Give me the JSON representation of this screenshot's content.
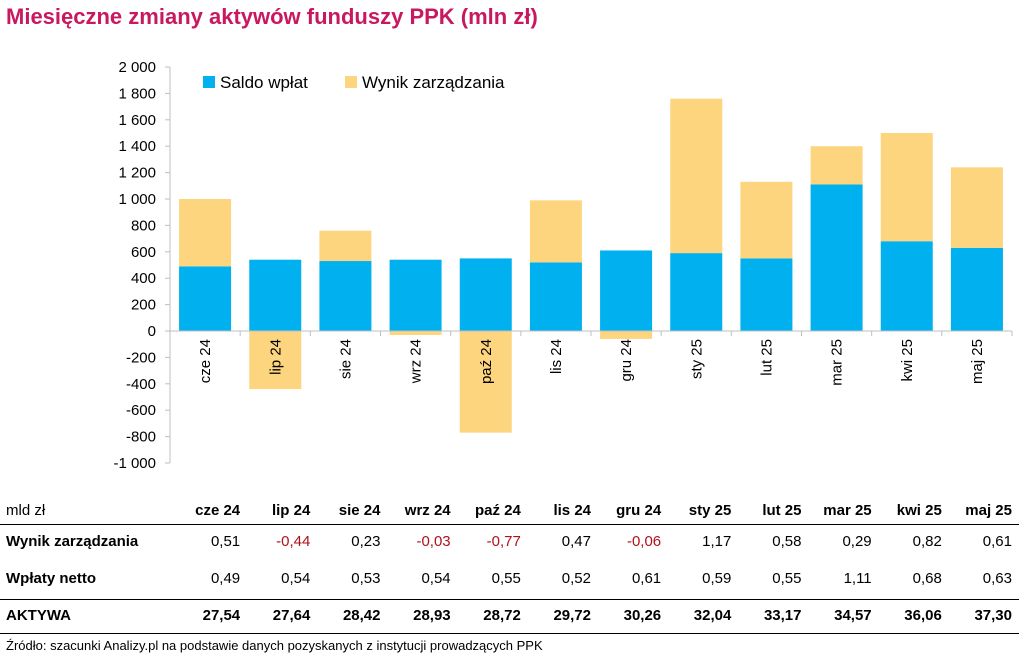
{
  "title": "Miesięczne zmiany aktywów funduszy PPK (mln zł)",
  "colors": {
    "saldo": "#00b0ef",
    "wynik": "#fdd57e",
    "title": "#c8185f",
    "negative": "#b0101a"
  },
  "chart_data": {
    "type": "bar",
    "stacked": true,
    "categories": [
      "cze 24",
      "lip 24",
      "sie 24",
      "wrz 24",
      "paź 24",
      "lis 24",
      "gru 24",
      "sty 25",
      "lut 25",
      "mar 25",
      "kwi 25",
      "maj 25"
    ],
    "series": [
      {
        "name": "Saldo wpłat",
        "values": [
          490,
          540,
          530,
          540,
          550,
          520,
          610,
          590,
          550,
          1110,
          680,
          630
        ]
      },
      {
        "name": "Wynik zarządzania",
        "values": [
          510,
          -440,
          230,
          -30,
          -770,
          470,
          -60,
          1170,
          580,
          290,
          820,
          610
        ]
      }
    ],
    "ylim": [
      -1000,
      2000
    ],
    "yticks": [
      "2 000",
      "1 800",
      "1 600",
      "1 400",
      "1 200",
      "1 000",
      "800",
      "600",
      "400",
      "200",
      "0",
      "-200",
      "-400",
      "-600",
      "-800",
      "-1 000"
    ],
    "legend_position": "top-left",
    "grid": false
  },
  "table": {
    "unit_label": "mld zł",
    "columns": [
      "cze 24",
      "lip 24",
      "sie 24",
      "wrz 24",
      "paź 24",
      "lis 24",
      "gru 24",
      "sty 25",
      "lut 25",
      "mar 25",
      "kwi 25",
      "maj 25"
    ],
    "rows": [
      {
        "label": "Wynik zarządzania",
        "values": [
          "0,51",
          "-0,44",
          "0,23",
          "-0,03",
          "-0,77",
          "0,47",
          "-0,06",
          "1,17",
          "0,58",
          "0,29",
          "0,82",
          "0,61"
        ]
      },
      {
        "label": "Wpłaty netto",
        "values": [
          "0,49",
          "0,54",
          "0,53",
          "0,54",
          "0,55",
          "0,52",
          "0,61",
          "0,59",
          "0,55",
          "1,11",
          "0,68",
          "0,63"
        ]
      },
      {
        "label": "AKTYWA",
        "values": [
          "27,54",
          "27,64",
          "28,42",
          "28,93",
          "28,72",
          "29,72",
          "30,26",
          "32,04",
          "33,17",
          "34,57",
          "36,06",
          "37,30"
        ]
      }
    ]
  },
  "source": "Źródło: szacunki Analizy.pl na podstawie danych pozyskanych z instytucji prowadzących PPK"
}
